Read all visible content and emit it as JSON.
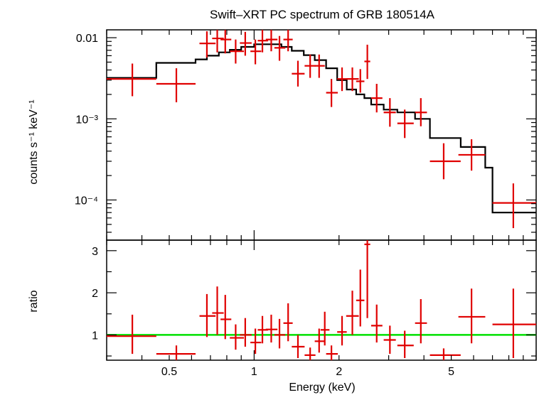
{
  "chart_data": [
    {
      "type": "scatter",
      "title": "Swift–XRT PC spectrum of GRB 180514A",
      "ylabel": "counts s⁻¹ keV⁻¹",
      "xlabel": "",
      "xscale": "log",
      "yscale": "log",
      "xlim": [
        0.3,
        10
      ],
      "ylim": [
        3.2e-05,
        0.0125
      ],
      "y_ticks": [
        {
          "value": 0.01,
          "label": "0.01"
        },
        {
          "value": 0.001,
          "label": "10⁻³"
        },
        {
          "value": 0.0001,
          "label": "10⁻⁴"
        }
      ],
      "points": [
        {
          "x": 0.37,
          "xlo": 0.3,
          "xhi": 0.45,
          "y": 0.0031,
          "ylo": 0.0019,
          "yhi": 0.0048
        },
        {
          "x": 0.53,
          "xlo": 0.45,
          "xhi": 0.62,
          "y": 0.0027,
          "ylo": 0.0016,
          "yhi": 0.0042
        },
        {
          "x": 0.68,
          "xlo": 0.64,
          "xhi": 0.73,
          "y": 0.0085,
          "ylo": 0.0057,
          "yhi": 0.012
        },
        {
          "x": 0.74,
          "xlo": 0.71,
          "xhi": 0.78,
          "y": 0.0098,
          "ylo": 0.0066,
          "yhi": 0.0135
        },
        {
          "x": 0.79,
          "xlo": 0.76,
          "xhi": 0.83,
          "y": 0.0095,
          "ylo": 0.0064,
          "yhi": 0.013
        },
        {
          "x": 0.86,
          "xlo": 0.82,
          "xhi": 0.92,
          "y": 0.0068,
          "ylo": 0.0048,
          "yhi": 0.0095
        },
        {
          "x": 0.93,
          "xlo": 0.89,
          "xhi": 0.98,
          "y": 0.0086,
          "ylo": 0.006,
          "yhi": 0.0118
        },
        {
          "x": 1.01,
          "xlo": 0.97,
          "xhi": 1.06,
          "y": 0.0068,
          "ylo": 0.0047,
          "yhi": 0.0095
        },
        {
          "x": 1.07,
          "xlo": 1.03,
          "xhi": 1.12,
          "y": 0.0092,
          "ylo": 0.0066,
          "yhi": 0.0125
        },
        {
          "x": 1.15,
          "xlo": 1.1,
          "xhi": 1.21,
          "y": 0.0095,
          "ylo": 0.0068,
          "yhi": 0.013
        },
        {
          "x": 1.23,
          "xlo": 1.18,
          "xhi": 1.29,
          "y": 0.0075,
          "ylo": 0.0052,
          "yhi": 0.0105
        },
        {
          "x": 1.32,
          "xlo": 1.27,
          "xhi": 1.37,
          "y": 0.0095,
          "ylo": 0.0068,
          "yhi": 0.013
        },
        {
          "x": 1.43,
          "xlo": 1.36,
          "xhi": 1.51,
          "y": 0.0036,
          "ylo": 0.0025,
          "yhi": 0.0052
        },
        {
          "x": 1.58,
          "xlo": 1.51,
          "xhi": 1.65,
          "y": 0.0045,
          "ylo": 0.0032,
          "yhi": 0.0062
        },
        {
          "x": 1.7,
          "xlo": 1.64,
          "xhi": 1.78,
          "y": 0.0045,
          "ylo": 0.0032,
          "yhi": 0.0062
        },
        {
          "x": 1.88,
          "xlo": 1.8,
          "xhi": 1.98,
          "y": 0.0021,
          "ylo": 0.0014,
          "yhi": 0.0031
        },
        {
          "x": 2.05,
          "xlo": 1.97,
          "xhi": 2.13,
          "y": 0.0031,
          "ylo": 0.0022,
          "yhi": 0.0043
        },
        {
          "x": 2.23,
          "xlo": 2.12,
          "xhi": 2.35,
          "y": 0.0031,
          "ylo": 0.0022,
          "yhi": 0.0043
        },
        {
          "x": 2.38,
          "xlo": 2.3,
          "xhi": 2.46,
          "y": 0.0029,
          "ylo": 0.0021,
          "yhi": 0.0041
        },
        {
          "x": 2.52,
          "xlo": 2.46,
          "xhi": 2.58,
          "y": 0.0051,
          "ylo": 0.0031,
          "yhi": 0.0082
        },
        {
          "x": 2.72,
          "xlo": 2.6,
          "xhi": 2.85,
          "y": 0.0018,
          "ylo": 0.0012,
          "yhi": 0.0027
        },
        {
          "x": 3.03,
          "xlo": 2.88,
          "xhi": 3.18,
          "y": 0.0012,
          "ylo": 0.0008,
          "yhi": 0.0018
        },
        {
          "x": 3.42,
          "xlo": 3.22,
          "xhi": 3.68,
          "y": 0.00088,
          "ylo": 0.00058,
          "yhi": 0.0013
        },
        {
          "x": 3.9,
          "xlo": 3.72,
          "xhi": 4.1,
          "y": 0.0012,
          "ylo": 0.00081,
          "yhi": 0.0018
        },
        {
          "x": 4.7,
          "xlo": 4.2,
          "xhi": 5.4,
          "y": 0.0003,
          "ylo": 0.00018,
          "yhi": 0.0005
        },
        {
          "x": 5.9,
          "xlo": 5.3,
          "xhi": 6.6,
          "y": 0.00036,
          "ylo": 0.00023,
          "yhi": 0.00056
        },
        {
          "x": 8.3,
          "xlo": 7.0,
          "xhi": 10.0,
          "y": 9.2e-05,
          "ylo": 4.5e-05,
          "yhi": 0.00016
        }
      ],
      "model_step": [
        {
          "x0": 0.3,
          "x1": 0.45,
          "y": 0.0032
        },
        {
          "x0": 0.45,
          "x1": 0.62,
          "y": 0.0049
        },
        {
          "x0": 0.62,
          "x1": 0.68,
          "y": 0.0054
        },
        {
          "x0": 0.68,
          "x1": 0.75,
          "y": 0.006
        },
        {
          "x0": 0.75,
          "x1": 0.82,
          "y": 0.0066
        },
        {
          "x0": 0.82,
          "x1": 0.9,
          "y": 0.0071
        },
        {
          "x0": 0.9,
          "x1": 1.0,
          "y": 0.0077
        },
        {
          "x0": 1.0,
          "x1": 1.25,
          "y": 0.0083
        },
        {
          "x0": 1.25,
          "x1": 1.36,
          "y": 0.0077
        },
        {
          "x0": 1.36,
          "x1": 1.5,
          "y": 0.0069
        },
        {
          "x0": 1.5,
          "x1": 1.64,
          "y": 0.0061
        },
        {
          "x0": 1.64,
          "x1": 1.8,
          "y": 0.0053
        },
        {
          "x0": 1.8,
          "x1": 1.97,
          "y": 0.0042
        },
        {
          "x0": 1.97,
          "x1": 2.13,
          "y": 0.003
        },
        {
          "x0": 2.13,
          "x1": 2.3,
          "y": 0.0023
        },
        {
          "x0": 2.3,
          "x1": 2.46,
          "y": 0.002
        },
        {
          "x0": 2.46,
          "x1": 2.6,
          "y": 0.0018
        },
        {
          "x0": 2.6,
          "x1": 2.88,
          "y": 0.0015
        },
        {
          "x0": 2.88,
          "x1": 3.22,
          "y": 0.0013
        },
        {
          "x0": 3.22,
          "x1": 3.72,
          "y": 0.0012
        },
        {
          "x0": 3.72,
          "x1": 4.2,
          "y": 0.001
        },
        {
          "x0": 4.2,
          "x1": 5.4,
          "y": 0.00058
        },
        {
          "x0": 5.4,
          "x1": 6.6,
          "y": 0.00045
        },
        {
          "x0": 6.6,
          "x1": 7.0,
          "y": 0.00025
        },
        {
          "x0": 7.0,
          "x1": 10.0,
          "y": 7e-05
        }
      ]
    },
    {
      "type": "scatter",
      "title": "",
      "ylabel": "ratio",
      "xlabel": "Energy (keV)",
      "xscale": "log",
      "xlim": [
        0.3,
        10
      ],
      "ylim": [
        0.4,
        3.25
      ],
      "x_ticks": [
        {
          "value": 0.5,
          "label": "0.5"
        },
        {
          "value": 1,
          "label": "1"
        },
        {
          "value": 2,
          "label": "2"
        },
        {
          "value": 5,
          "label": "5"
        }
      ],
      "y_ticks": [
        {
          "value": 1,
          "label": "1"
        },
        {
          "value": 2,
          "label": "2"
        },
        {
          "value": 3,
          "label": "3"
        }
      ],
      "reference_line": 1,
      "points": [
        {
          "x": 0.37,
          "xlo": 0.3,
          "xhi": 0.45,
          "y": 0.97,
          "ylo": 0.55,
          "yhi": 1.48
        },
        {
          "x": 0.53,
          "xlo": 0.45,
          "xhi": 0.62,
          "y": 0.55,
          "ylo": 0.4,
          "yhi": 0.75
        },
        {
          "x": 0.68,
          "xlo": 0.64,
          "xhi": 0.73,
          "y": 1.45,
          "ylo": 0.95,
          "yhi": 1.97
        },
        {
          "x": 0.74,
          "xlo": 0.71,
          "xhi": 0.78,
          "y": 1.52,
          "ylo": 1.0,
          "yhi": 2.15
        },
        {
          "x": 0.79,
          "xlo": 0.76,
          "xhi": 0.83,
          "y": 1.37,
          "ylo": 0.9,
          "yhi": 1.95
        },
        {
          "x": 0.86,
          "xlo": 0.82,
          "xhi": 0.92,
          "y": 0.93,
          "ylo": 0.65,
          "yhi": 1.25
        },
        {
          "x": 0.93,
          "xlo": 0.89,
          "xhi": 0.98,
          "y": 1.0,
          "ylo": 0.72,
          "yhi": 1.4
        },
        {
          "x": 1.01,
          "xlo": 0.97,
          "xhi": 1.06,
          "y": 0.82,
          "ylo": 0.55,
          "yhi": 1.15
        },
        {
          "x": 1.07,
          "xlo": 1.03,
          "xhi": 1.12,
          "y": 1.12,
          "ylo": 0.8,
          "yhi": 1.45
        },
        {
          "x": 1.15,
          "xlo": 1.1,
          "xhi": 1.21,
          "y": 1.13,
          "ylo": 0.82,
          "yhi": 1.48
        },
        {
          "x": 1.23,
          "xlo": 1.18,
          "xhi": 1.29,
          "y": 1.0,
          "ylo": 0.68,
          "yhi": 1.38
        },
        {
          "x": 1.32,
          "xlo": 1.27,
          "xhi": 1.37,
          "y": 1.28,
          "ylo": 0.85,
          "yhi": 1.75
        },
        {
          "x": 1.43,
          "xlo": 1.36,
          "xhi": 1.51,
          "y": 0.72,
          "ylo": 0.45,
          "yhi": 1.0
        },
        {
          "x": 1.58,
          "xlo": 1.51,
          "xhi": 1.65,
          "y": 0.52,
          "ylo": 0.4,
          "yhi": 0.7
        },
        {
          "x": 1.7,
          "xlo": 1.64,
          "xhi": 1.78,
          "y": 0.85,
          "ylo": 0.58,
          "yhi": 1.15
        },
        {
          "x": 1.78,
          "xlo": 1.72,
          "xhi": 1.85,
          "y": 1.12,
          "ylo": 0.75,
          "yhi": 1.55
        },
        {
          "x": 1.88,
          "xlo": 1.8,
          "xhi": 1.98,
          "y": 0.55,
          "ylo": 0.4,
          "yhi": 0.75
        },
        {
          "x": 2.05,
          "xlo": 1.97,
          "xhi": 2.13,
          "y": 1.07,
          "ylo": 0.75,
          "yhi": 1.45
        },
        {
          "x": 2.23,
          "xlo": 2.12,
          "xhi": 2.35,
          "y": 1.45,
          "ylo": 1.0,
          "yhi": 2.05
        },
        {
          "x": 2.38,
          "xlo": 2.3,
          "xhi": 2.46,
          "y": 1.82,
          "ylo": 1.2,
          "yhi": 2.55
        },
        {
          "x": 2.52,
          "xlo": 2.46,
          "xhi": 2.58,
          "y": 3.15,
          "ylo": 1.4,
          "yhi": 3.25
        },
        {
          "x": 2.72,
          "xlo": 2.6,
          "xhi": 2.85,
          "y": 1.22,
          "ylo": 0.82,
          "yhi": 1.72
        },
        {
          "x": 3.03,
          "xlo": 2.88,
          "xhi": 3.18,
          "y": 0.88,
          "ylo": 0.55,
          "yhi": 1.22
        },
        {
          "x": 3.42,
          "xlo": 3.22,
          "xhi": 3.68,
          "y": 0.75,
          "ylo": 0.45,
          "yhi": 1.1
        },
        {
          "x": 3.9,
          "xlo": 3.72,
          "xhi": 4.1,
          "y": 1.28,
          "ylo": 0.8,
          "yhi": 1.85
        },
        {
          "x": 4.7,
          "xlo": 4.2,
          "xhi": 5.4,
          "y": 0.52,
          "ylo": 0.4,
          "yhi": 0.68
        },
        {
          "x": 5.9,
          "xlo": 5.3,
          "xhi": 6.6,
          "y": 1.43,
          "ylo": 0.8,
          "yhi": 2.1
        },
        {
          "x": 8.3,
          "xlo": 7.0,
          "xhi": 10.0,
          "y": 1.25,
          "ylo": 0.45,
          "yhi": 2.1
        }
      ]
    }
  ]
}
